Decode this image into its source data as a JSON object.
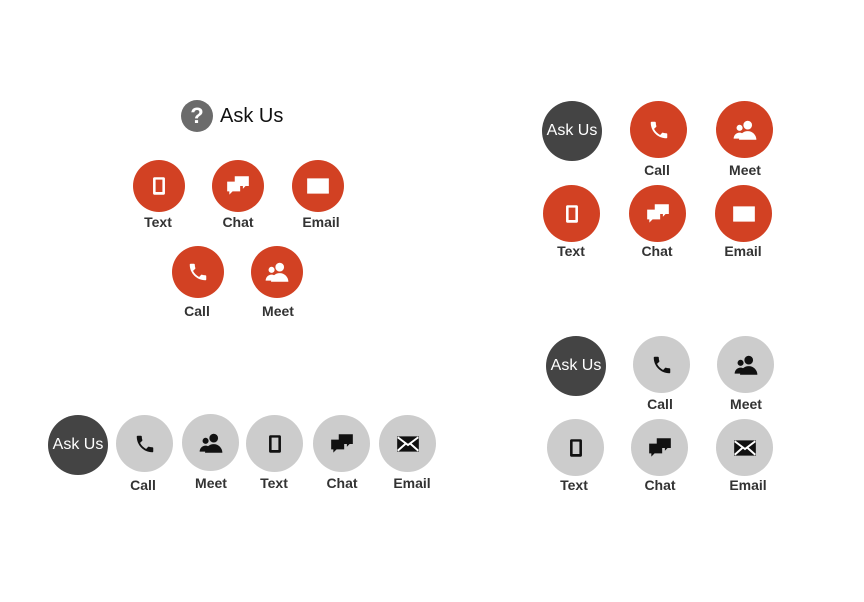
{
  "header": {
    "icon": "question-mark-icon",
    "question_mark": "?",
    "title": "Ask Us"
  },
  "labels": {
    "ask_us": "Ask Us",
    "text": "Text",
    "chat": "Chat",
    "email": "Email",
    "call": "Call",
    "meet": "Meet"
  },
  "colors": {
    "orange": "#d24123",
    "gray": "#cccccc",
    "dark": "#444444",
    "label": "#333333"
  }
}
